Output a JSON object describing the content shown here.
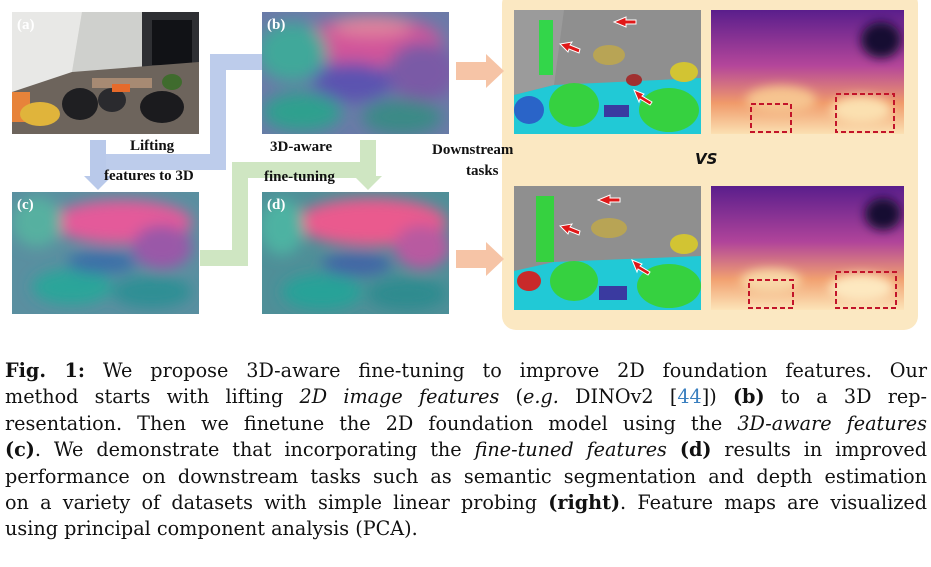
{
  "panels": {
    "a": {
      "label": "(a)"
    },
    "b": {
      "label": "(b)"
    },
    "c": {
      "label": "(c)"
    },
    "d": {
      "label": "(d)"
    }
  },
  "flow": {
    "lifting_line1": "Lifting",
    "lifting_line2": "features to 3D",
    "aware_line1": "3D-aware",
    "aware_line2": "fine-tuning",
    "downstream_line1": "Downstream",
    "downstream_line2": "tasks",
    "vs": "VS"
  },
  "caption": {
    "fig_label": "Fig. 1:",
    "l1": "We propose 3D-aware fine-tuning to improve 2D foundation features. Our",
    "l2a": "method starts with lifting ",
    "l2b": "2D image features",
    "l2c": " (",
    "l2d": "e.g.",
    "l2e": " DINOv2 [",
    "l2ref": "44",
    "l2f": "]) ",
    "l2g": "(b)",
    "l2h": " to a 3D rep-",
    "l3a": "resentation. Then we finetune the 2D foundation model using the ",
    "l3b": "3D-aware features",
    "l4a": "(c)",
    "l4b": ". We demonstrate that incorporating the ",
    "l4c": "fine-tuned features",
    "l4d": " ",
    "l4e": "(d)",
    "l4f": " results in improved",
    "l5": "performance on downstream tasks such as semantic segmentation and depth estimation",
    "l6a": "on a variety of datasets with simple linear probing ",
    "l6b": "(right)",
    "l6c": ". Feature maps are visualized",
    "l7": "using principal component analysis (PCA)."
  },
  "colors": {
    "blue_arrow": "#b9c9ea",
    "green_arrow": "#cfe6c2",
    "orange_arrow": "#f6c4a6",
    "results_bg": "#fbe8c2",
    "red_marker": "#e01818"
  }
}
